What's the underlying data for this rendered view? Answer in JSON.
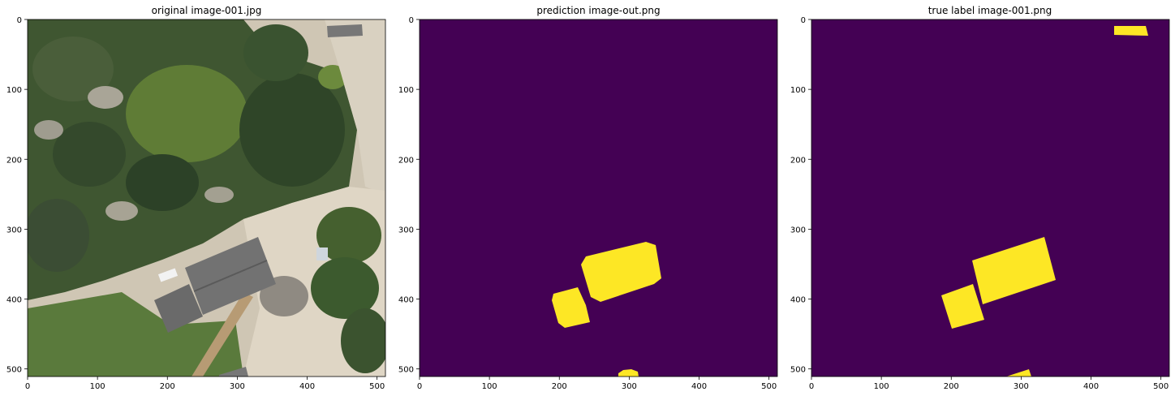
{
  "panels": [
    {
      "title": "original image-001.jpg",
      "xticks": [
        "0",
        "100",
        "200",
        "300",
        "400",
        "500"
      ],
      "yticks": [
        "0",
        "100",
        "200",
        "300",
        "400",
        "500"
      ]
    },
    {
      "title": "prediction image-out.png",
      "xticks": [
        "0",
        "100",
        "200",
        "300",
        "400",
        "500"
      ],
      "yticks": [
        "0",
        "100",
        "200",
        "300",
        "400",
        "500"
      ]
    },
    {
      "title": "true label image-001.png",
      "xticks": [
        "0",
        "100",
        "200",
        "300",
        "400",
        "500"
      ],
      "yticks": [
        "0",
        "100",
        "200",
        "300",
        "400",
        "500"
      ]
    }
  ],
  "colors": {
    "mask_background": "#440154",
    "mask_foreground": "#fde725",
    "sand": "#d8cfbf",
    "vegetation_dark": "#344a2c",
    "vegetation_mid": "#4d6a35",
    "vegetation_light": "#6f8f3a",
    "lawn": "#5a7a3c",
    "roof": "#6e6e6e"
  }
}
